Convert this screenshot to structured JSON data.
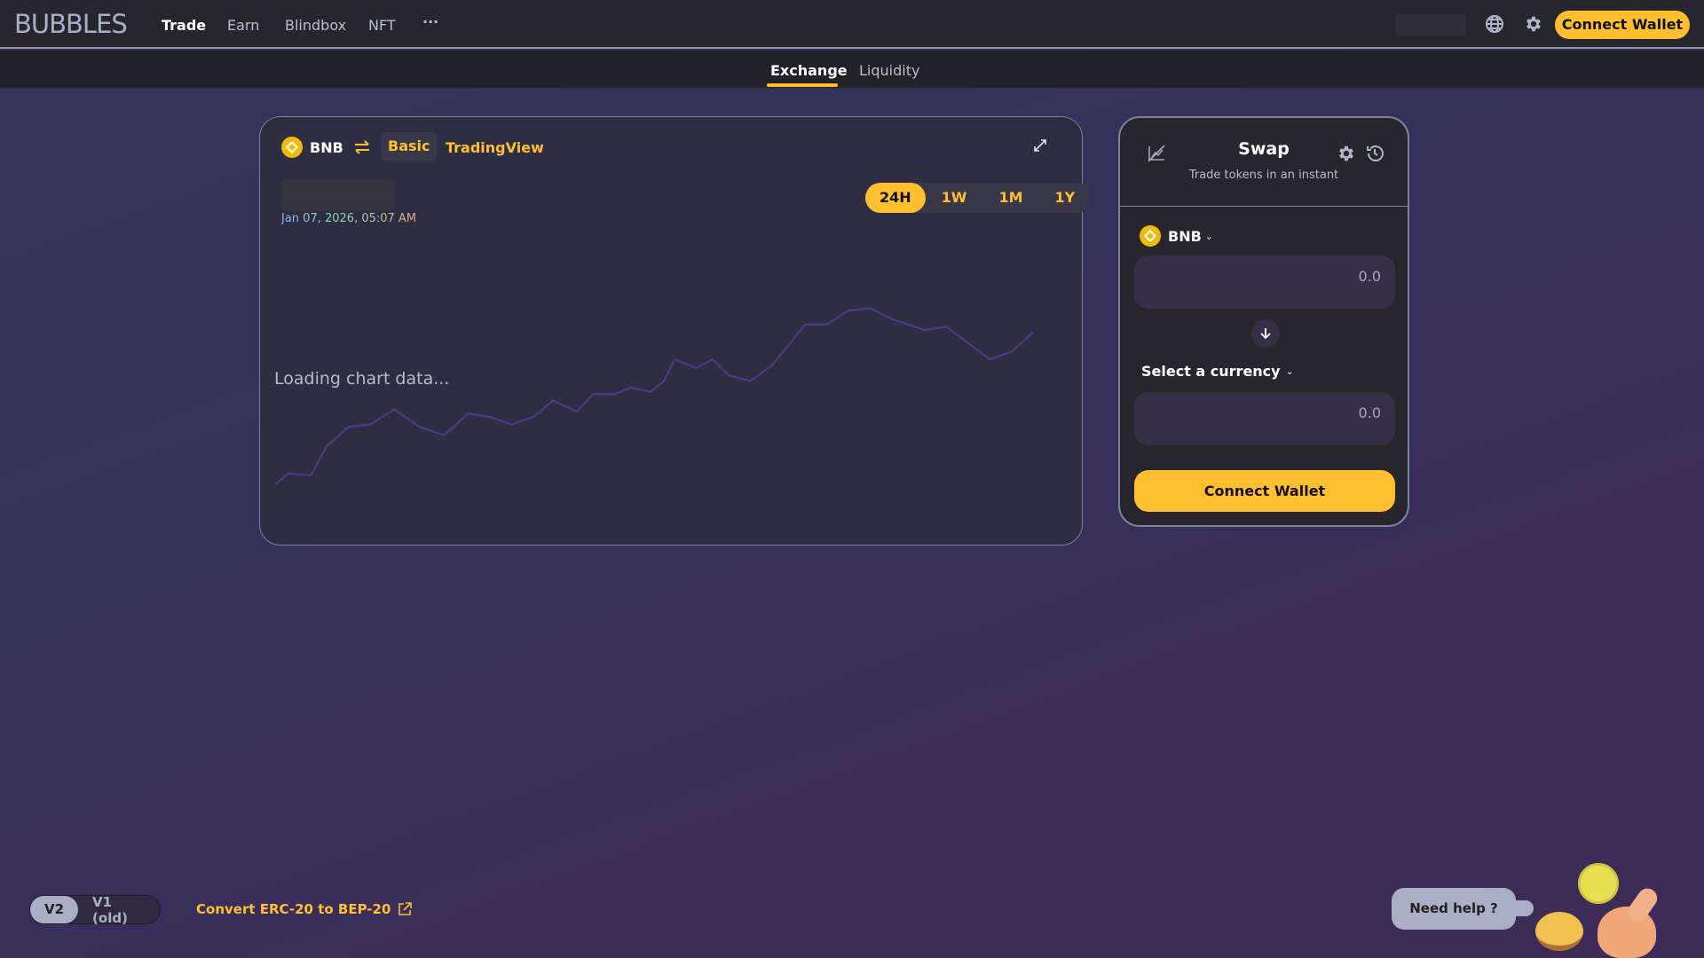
{
  "header": {
    "logo": "BUBBLES",
    "nav": [
      "Trade",
      "Earn",
      "Blindbox",
      "NFT"
    ],
    "more": "···",
    "connect_wallet": "Connect Wallet"
  },
  "subnav": {
    "tabs": [
      "Exchange",
      "Liquidity"
    ]
  },
  "chart": {
    "token": "BNB",
    "views": [
      "Basic",
      "TradingView"
    ],
    "timestamp": "Jan 07, 2026, 05:07 AM",
    "ranges": [
      "24H",
      "1W",
      "1M",
      "1Y"
    ],
    "active_range": "24H",
    "loading": "Loading chart data...",
    "line_color": "#4b3b8c"
  },
  "swap": {
    "title": "Swap",
    "subtitle": "Trade tokens in an instant",
    "from_token": "BNB",
    "from_value": "0.0",
    "to_token": "Select a currency",
    "to_value": "0.0",
    "connect_wallet": "Connect Wallet"
  },
  "footer": {
    "versions": [
      "V2",
      "V1 (old)"
    ],
    "convert_link": "Convert ERC-20 to BEP-20",
    "help": "Need help ?"
  },
  "colors": {
    "accent": "#ffbf2f",
    "bnb": "#f0b90b"
  }
}
